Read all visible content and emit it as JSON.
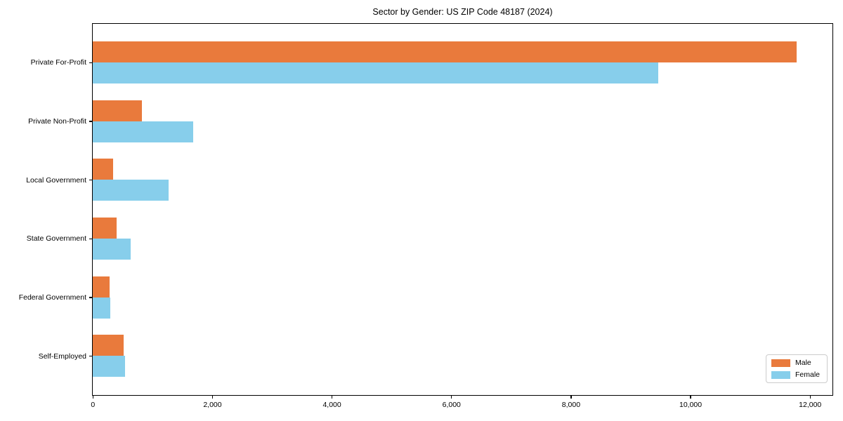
{
  "chart_data": {
    "type": "bar",
    "orientation": "horizontal",
    "title": "Sector by Gender: US ZIP Code 48187 (2024)",
    "xlabel": "",
    "ylabel": "",
    "categories": [
      "Private For-Profit",
      "Private Non-Profit",
      "Local Government",
      "State Government",
      "Federal Government",
      "Self-Employed"
    ],
    "series": [
      {
        "name": "Male",
        "color": "#e97a3c",
        "values": [
          11780,
          825,
          340,
          395,
          280,
          520
        ]
      },
      {
        "name": "Female",
        "color": "#87ceeb",
        "values": [
          9460,
          1680,
          1270,
          630,
          290,
          540
        ]
      }
    ],
    "xlim": [
      0,
      12370
    ],
    "xticks": {
      "values": [
        0,
        2000,
        4000,
        6000,
        8000,
        10000,
        12000
      ],
      "labels": [
        "0",
        "2,000",
        "4,000",
        "6,000",
        "8,000",
        "10,000",
        "12,000"
      ]
    },
    "grid": false,
    "legend": {
      "position": "lower right",
      "entries": [
        "Male",
        "Female"
      ]
    },
    "colors": {
      "frame": "#000000",
      "background": "#ffffff",
      "legend_border": "#cccccc",
      "text": "#000000"
    }
  }
}
